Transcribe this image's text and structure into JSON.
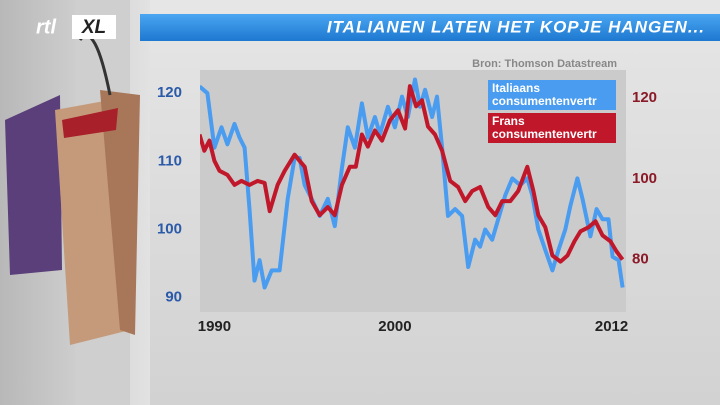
{
  "brand": {
    "logo_rtl": "rtl",
    "logo_xl": "XL"
  },
  "chart_data": {
    "type": "line",
    "title": "ITALIANEN LATEN HET KOPJE HANGEN...",
    "source": "Bron: Thomson Datastream",
    "xlim": [
      1989.2,
      2012.8
    ],
    "xticks": [
      1990,
      2000,
      2012
    ],
    "ylim": [
      87.9,
      123.4
    ],
    "yticks": [
      90,
      100,
      110,
      120
    ],
    "y2lim": [
      67,
      127
    ],
    "y2ticks": [
      80,
      100,
      120
    ],
    "grid": false,
    "legend": "top-right",
    "series": [
      {
        "name": "Italiaans consumentenvertr",
        "color": "#4a9cf0",
        "axis": "y",
        "x": [
          1989.17,
          1989.61,
          1990.0,
          1990.39,
          1990.72,
          1991.11,
          1991.39,
          1991.67,
          1991.94,
          1992.22,
          1992.5,
          1992.78,
          1993.17,
          1993.61,
          1994.06,
          1994.44,
          1994.72,
          1995.0,
          1995.39,
          1995.83,
          1996.28,
          1996.67,
          1997.06,
          1997.39,
          1997.78,
          1998.17,
          1998.5,
          1998.89,
          1999.17,
          1999.61,
          2000.0,
          2000.39,
          2000.72,
          2001.11,
          2001.39,
          2001.67,
          2002.06,
          2002.33,
          2002.61,
          2002.94,
          2003.33,
          2003.72,
          2004.06,
          2004.44,
          2004.72,
          2005.0,
          2005.39,
          2005.72,
          2006.11,
          2006.5,
          2006.94,
          2007.33,
          2007.61,
          2007.94,
          2008.33,
          2008.72,
          2009.06,
          2009.44,
          2009.72,
          2010.11,
          2010.39,
          2010.83,
          2011.17,
          2011.5,
          2011.83,
          2012.06,
          2012.39,
          2012.61
        ],
        "values": [
          121,
          120,
          112,
          115,
          112.5,
          115.5,
          113.5,
          112,
          103,
          92.5,
          95.5,
          91.5,
          94,
          94,
          104.5,
          110.5,
          110.5,
          106.5,
          104.5,
          102,
          104.5,
          100.5,
          109,
          115,
          112,
          118.5,
          113.5,
          116.5,
          114,
          118,
          115,
          119.5,
          116.5,
          122,
          118,
          120.5,
          116.5,
          119.5,
          112,
          102,
          103,
          102,
          94.5,
          98.5,
          97.5,
          100,
          98.5,
          101.5,
          105,
          107.5,
          106.5,
          107.5,
          105,
          100,
          97,
          94,
          97,
          100,
          103.5,
          107.5,
          104.5,
          99,
          103,
          101.5,
          101.5,
          96,
          95.5,
          91.5
        ]
      },
      {
        "name": "Frans consumentenvertr",
        "color": "#c0182a",
        "axis": "y2",
        "x": [
          1989.17,
          1989.44,
          1989.72,
          1990.0,
          1990.28,
          1990.72,
          1991.11,
          1991.5,
          1991.94,
          1992.39,
          1992.78,
          1993.06,
          1993.5,
          1993.89,
          1994.44,
          1994.72,
          1995.0,
          1995.39,
          1995.83,
          1996.28,
          1996.67,
          1997.06,
          1997.5,
          1997.83,
          1998.17,
          1998.5,
          1998.89,
          1999.28,
          1999.72,
          2000.17,
          2000.56,
          2000.83,
          2001.17,
          2001.5,
          2001.83,
          2002.22,
          2002.61,
          2003.06,
          2003.5,
          2003.89,
          2004.28,
          2004.72,
          2005.17,
          2005.56,
          2005.94,
          2006.39,
          2006.83,
          2007.33,
          2007.67,
          2007.94,
          2008.33,
          2008.72,
          2009.17,
          2009.56,
          2009.94,
          2010.28,
          2010.72,
          2011.11,
          2011.5,
          2011.94,
          2012.28,
          2012.61
        ],
        "values": [
          111,
          107,
          109.5,
          104.5,
          102,
          101,
          98.5,
          99.5,
          98.5,
          99.5,
          99,
          92,
          98.5,
          102,
          106,
          104.5,
          103,
          94.5,
          91,
          93,
          91,
          98.5,
          103,
          103,
          111,
          108,
          112,
          109.5,
          114.5,
          117,
          112.5,
          123,
          118,
          119.5,
          113,
          111,
          107,
          99.5,
          98,
          94.5,
          97,
          98,
          93,
          91,
          94.5,
          94.5,
          97,
          103,
          97,
          91,
          88,
          81,
          79.5,
          81,
          84.5,
          87,
          88,
          89.5,
          86,
          84.5,
          82,
          80
        ]
      }
    ]
  }
}
